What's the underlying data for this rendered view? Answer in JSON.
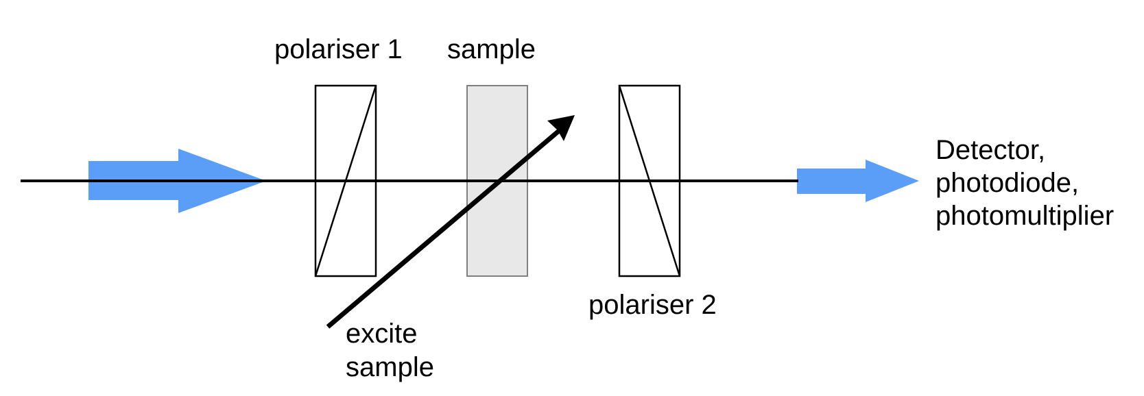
{
  "labels": {
    "polariser1": "polariser 1",
    "sample": "sample",
    "polariser2": "polariser 2",
    "excite_line1": "excite",
    "excite_line2": "sample",
    "detector_line1": "Detector,",
    "detector_line2": "photodiode,",
    "detector_line3": "photomultiplier"
  },
  "colors": {
    "beam_arrow": "#5B9EF8",
    "sample_fill": "#E8E8E8",
    "sample_stroke": "#7F7F7F",
    "line": "#000000"
  }
}
